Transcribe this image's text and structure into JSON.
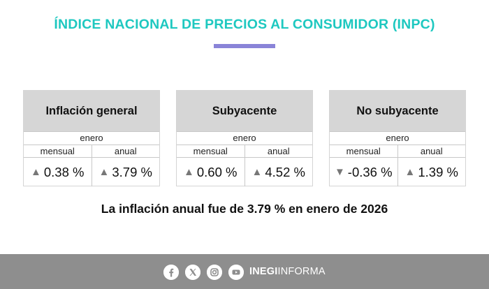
{
  "header": {
    "title": "ÍNDICE NACIONAL DE PRECIOS AL CONSUMIDOR (INPC)"
  },
  "cards": [
    {
      "title": "Inflación general",
      "period": "enero",
      "monthly": {
        "label": "mensual",
        "arrow": "▲",
        "value": "0.38 %"
      },
      "annual": {
        "label": "anual",
        "arrow": "▲",
        "value": "3.79 %"
      }
    },
    {
      "title": "Subyacente",
      "period": "enero",
      "monthly": {
        "label": "mensual",
        "arrow": "▲",
        "value": "0.60 %"
      },
      "annual": {
        "label": "anual",
        "arrow": "▲",
        "value": "4.52 %"
      }
    },
    {
      "title": "No subyacente",
      "period": "enero",
      "monthly": {
        "label": "mensual",
        "arrow": "▼",
        "value": "-0.36 %"
      },
      "annual": {
        "label": "anual",
        "arrow": "▲",
        "value": "1.39 %"
      }
    }
  ],
  "summary": "La inflación anual fue de 3.79 % en enero de 2026",
  "footer": {
    "icons": [
      "facebook-icon",
      "x-icon",
      "instagram-icon",
      "youtube-icon"
    ],
    "brand_bold": "INEGI",
    "brand_rest": "INFORMA"
  },
  "colors": {
    "title": "#1ec8c0",
    "accent_bar": "#8a84d8",
    "card_header": "#d6d6d6",
    "footer": "#8e8e8e"
  }
}
